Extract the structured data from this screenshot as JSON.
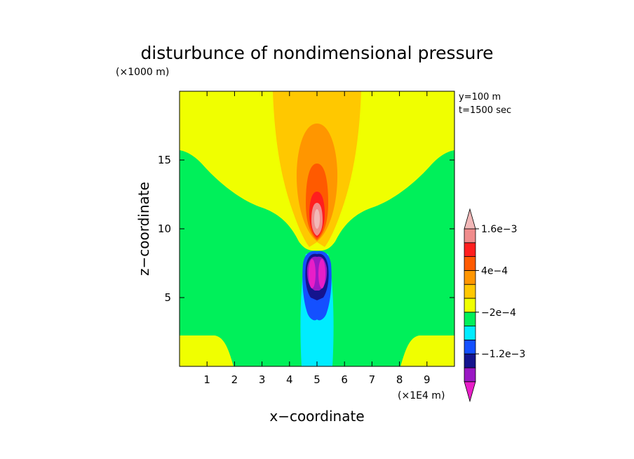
{
  "chart_data": {
    "type": "heatmap",
    "title": "disturbunce of nondimensional pressure",
    "xlabel": "x−coordinate",
    "ylabel": "z−coordinate",
    "x_unit": "(×1E4 m)",
    "y_unit": "(×1000 m)",
    "annotations": [
      "y=100 m",
      "t=1500 sec"
    ],
    "xlim": [
      0,
      10
    ],
    "ylim": [
      0,
      20
    ],
    "x_ticks": [
      1,
      2,
      3,
      4,
      5,
      6,
      7,
      8,
      9
    ],
    "y_ticks": [
      5,
      10,
      15
    ],
    "colorbar": {
      "colors": [
        "#e81ec8",
        "#9a18c4",
        "#14148e",
        "#1450ff",
        "#00ecff",
        "#00f05a",
        "#f0ff00",
        "#ffc800",
        "#ff9600",
        "#ff5a00",
        "#ff1e1e",
        "#f08c8c",
        "#f2b8b8"
      ],
      "tick_labels": [
        {
          "label": "1.6e−3",
          "boundary": 11
        },
        {
          "label": "4e−4",
          "boundary": 8
        },
        {
          "label": "−2e−4",
          "boundary": 5
        },
        {
          "label": "−1.2e−3",
          "boundary": 2
        }
      ]
    },
    "fields": [
      {
        "level": "background",
        "color": "#00f05a"
      },
      {
        "level": "yellow",
        "color": "#f0ff00"
      },
      {
        "level": "light-orange",
        "color": "#ffc800"
      },
      {
        "level": "orange",
        "color": "#ff9600"
      },
      {
        "level": "dark-orange",
        "color": "#ff5a00"
      },
      {
        "level": "red",
        "color": "#ff1e1e"
      },
      {
        "level": "pink",
        "color": "#f08c8c"
      },
      {
        "level": "light-pink",
        "color": "#f2b8b8"
      },
      {
        "level": "cyan",
        "color": "#00ecff"
      },
      {
        "level": "blue",
        "color": "#1450ff"
      },
      {
        "level": "navy",
        "color": "#14148e"
      },
      {
        "level": "purple",
        "color": "#9a18c4"
      },
      {
        "level": "magenta",
        "color": "#e81ec8"
      }
    ]
  }
}
